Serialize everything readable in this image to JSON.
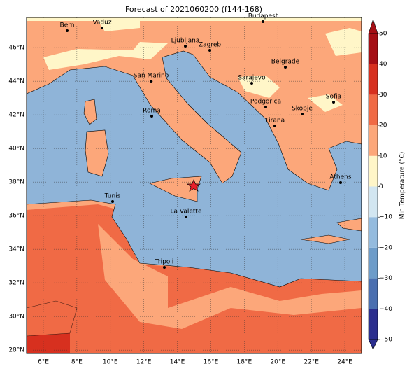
{
  "title": "Forecast of 2021060200 (f144-168)",
  "map": {
    "lon_ticks": [
      {
        "value": 6,
        "label": "6°E"
      },
      {
        "value": 8,
        "label": "8°E"
      },
      {
        "value": 10,
        "label": "10°E"
      },
      {
        "value": 12,
        "label": "12°E"
      },
      {
        "value": 14,
        "label": "14°E"
      },
      {
        "value": 16,
        "label": "16°E"
      },
      {
        "value": 18,
        "label": "18°E"
      },
      {
        "value": 20,
        "label": "20°E"
      },
      {
        "value": 22,
        "label": "22°E"
      },
      {
        "value": 24,
        "label": "24°E"
      }
    ],
    "lat_ticks": [
      {
        "value": 28,
        "label": "28°N"
      },
      {
        "value": 30,
        "label": "30°N"
      },
      {
        "value": 32,
        "label": "32°N"
      },
      {
        "value": 34,
        "label": "34°N"
      },
      {
        "value": 36,
        "label": "36°N"
      },
      {
        "value": 38,
        "label": "38°N"
      },
      {
        "value": 40,
        "label": "40°N"
      },
      {
        "value": 42,
        "label": "42°N"
      },
      {
        "value": 44,
        "label": "44°N"
      },
      {
        "value": 46,
        "label": "46°N"
      }
    ],
    "cities": [
      "Bern",
      "Vaduz",
      "Budapest",
      "Ljubljana",
      "Zagreb",
      "Belgrade",
      "San Marino",
      "Sarajevo",
      "Sofia",
      "Roma",
      "Podgorica",
      "Skopje",
      "Tirana",
      "Athens",
      "Tunis",
      "La Valette",
      "Tripoli"
    ]
  },
  "colorbar": {
    "label": "Min Temperature (°C)",
    "ticks": [
      {
        "value": -50,
        "label": "−50"
      },
      {
        "value": -40,
        "label": "−40"
      },
      {
        "value": -30,
        "label": "−30"
      },
      {
        "value": -20,
        "label": "−20"
      },
      {
        "value": -10,
        "label": "−10"
      },
      0,
      10,
      20,
      30,
      40,
      50
    ],
    "colors": [
      "#2b2e8e",
      "#4a6fb0",
      "#6d9cc9",
      "#94bbde",
      "#d2e6f1",
      "#fff6c8",
      "#fca77a",
      "#f06a45",
      "#d7301f",
      "#a50f15"
    ],
    "lim": [
      -50,
      50
    ]
  }
}
